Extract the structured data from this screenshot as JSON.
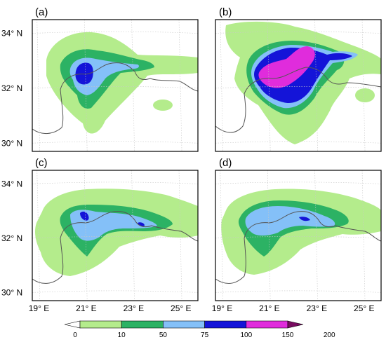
{
  "chart_data": {
    "type": "heatmap",
    "panels": [
      {
        "label": "(a)",
        "position": "top-left"
      },
      {
        "label": "(b)",
        "position": "top-right"
      },
      {
        "label": "(c)",
        "position": "bottom-left"
      },
      {
        "label": "(d)",
        "position": "bottom-right"
      }
    ],
    "y_ticks": [
      "34° N",
      "32° N",
      "30° N"
    ],
    "x_ticks": [
      "19° E",
      "21° E",
      "23° E",
      "25° E"
    ],
    "lon_range": [
      18.8,
      25.8
    ],
    "lat_range": [
      29.7,
      34.5
    ],
    "colorbar": {
      "levels": [
        "0",
        "10",
        "50",
        "75",
        "100",
        "150",
        "200"
      ],
      "colors": [
        "#ffffff",
        "#b4ec8c",
        "#2cb264",
        "#84c0f8",
        "#1414d8",
        "#e02cdc",
        "#780c60"
      ]
    },
    "grid": true,
    "note_free": true
  }
}
